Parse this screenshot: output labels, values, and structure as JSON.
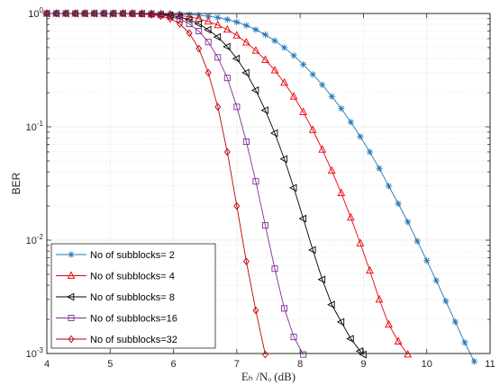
{
  "chart_data": {
    "type": "line",
    "title": "",
    "xlabel": "Eₕ /Nₒ (dB)",
    "ylabel": "BER",
    "xlim": [
      4,
      11
    ],
    "ylim": [
      0.001,
      1
    ],
    "yscale": "log",
    "grid": true,
    "legend_position": "bottom-left",
    "x_ticks": [
      "4",
      "5",
      "6",
      "7",
      "8",
      "9",
      "10",
      "11"
    ],
    "y_ticks": [
      {
        "value": 1,
        "base": "10",
        "exp": "0"
      },
      {
        "value": 0.1,
        "base": "10",
        "exp": "-1"
      },
      {
        "value": 0.01,
        "base": "10",
        "exp": "-2"
      },
      {
        "value": 0.001,
        "base": "10",
        "exp": "-3"
      }
    ],
    "series": [
      {
        "name": "No of subblocks= 2",
        "color": "#1f77b4",
        "marker": "asterisk",
        "x": [
          4.0,
          4.15,
          4.3,
          4.45,
          4.6,
          4.75,
          4.9,
          5.05,
          5.2,
          5.35,
          5.5,
          5.65,
          5.8,
          5.95,
          6.1,
          6.25,
          6.4,
          6.55,
          6.7,
          6.85,
          7.0,
          7.15,
          7.3,
          7.45,
          7.6,
          7.75,
          7.9,
          8.05,
          8.2,
          8.35,
          8.5,
          8.65,
          8.8,
          8.95,
          9.1,
          9.25,
          9.4,
          9.55,
          9.7,
          9.85,
          10.0,
          10.15,
          10.3,
          10.45,
          10.6,
          10.75
        ],
        "y": [
          1.0,
          1.0,
          1.0,
          1.0,
          1.0,
          1.0,
          1.0,
          1.0,
          1.0,
          1.0,
          1.0,
          1.0,
          0.998,
          0.996,
          0.99,
          0.98,
          0.965,
          0.945,
          0.92,
          0.885,
          0.84,
          0.785,
          0.72,
          0.65,
          0.575,
          0.5,
          0.425,
          0.355,
          0.29,
          0.235,
          0.185,
          0.145,
          0.11,
          0.082,
          0.06,
          0.043,
          0.03,
          0.021,
          0.0145,
          0.0098,
          0.0066,
          0.0044,
          0.0029,
          0.0019,
          0.00125,
          0.00085
        ]
      },
      {
        "name": "No of subblocks= 4",
        "color": "#e8000b",
        "marker": "triangle-up",
        "x": [
          4.0,
          4.15,
          4.3,
          4.45,
          4.6,
          4.75,
          4.9,
          5.05,
          5.2,
          5.35,
          5.5,
          5.65,
          5.8,
          5.95,
          6.1,
          6.25,
          6.4,
          6.55,
          6.7,
          6.85,
          7.0,
          7.15,
          7.3,
          7.45,
          7.6,
          7.75,
          7.9,
          8.05,
          8.2,
          8.35,
          8.5,
          8.65,
          8.8,
          8.95,
          9.1,
          9.25,
          9.4,
          9.55,
          9.7
        ],
        "y": [
          1.0,
          1.0,
          1.0,
          1.0,
          1.0,
          1.0,
          1.0,
          1.0,
          1.0,
          1.0,
          0.998,
          0.995,
          0.99,
          0.98,
          0.96,
          0.935,
          0.9,
          0.85,
          0.79,
          0.72,
          0.64,
          0.555,
          0.47,
          0.39,
          0.315,
          0.245,
          0.185,
          0.135,
          0.094,
          0.063,
          0.041,
          0.026,
          0.0158,
          0.0094,
          0.0054,
          0.003,
          0.0018,
          0.00128,
          0.00098
        ]
      },
      {
        "name": "No of subblocks= 8",
        "color": "#000000",
        "marker": "triangle-left",
        "x": [
          4.0,
          4.15,
          4.3,
          4.45,
          4.6,
          4.75,
          4.9,
          5.05,
          5.2,
          5.35,
          5.5,
          5.65,
          5.8,
          5.95,
          6.1,
          6.25,
          6.4,
          6.55,
          6.7,
          6.85,
          7.0,
          7.15,
          7.3,
          7.45,
          7.6,
          7.75,
          7.9,
          8.05,
          8.2,
          8.35,
          8.5,
          8.65,
          8.8,
          8.95,
          9.0
        ],
        "y": [
          1.0,
          1.0,
          1.0,
          1.0,
          1.0,
          1.0,
          1.0,
          1.0,
          1.0,
          0.998,
          0.995,
          0.99,
          0.98,
          0.96,
          0.93,
          0.88,
          0.81,
          0.72,
          0.62,
          0.51,
          0.4,
          0.3,
          0.21,
          0.14,
          0.088,
          0.052,
          0.029,
          0.0155,
          0.0082,
          0.0045,
          0.0027,
          0.0019,
          0.00135,
          0.00105,
          0.00098
        ]
      },
      {
        "name": "No of subblocks=16",
        "color": "#7e2f8e",
        "marker": "square",
        "x": [
          4.0,
          4.15,
          4.3,
          4.45,
          4.6,
          4.75,
          4.9,
          5.05,
          5.2,
          5.35,
          5.5,
          5.65,
          5.8,
          5.95,
          6.1,
          6.25,
          6.4,
          6.55,
          6.7,
          6.85,
          7.0,
          7.15,
          7.3,
          7.45,
          7.6,
          7.75,
          7.9,
          8.05
        ],
        "y": [
          1.0,
          1.0,
          1.0,
          1.0,
          1.0,
          1.0,
          1.0,
          1.0,
          1.0,
          0.997,
          0.993,
          0.985,
          0.97,
          0.94,
          0.89,
          0.81,
          0.7,
          0.56,
          0.41,
          0.27,
          0.15,
          0.074,
          0.033,
          0.0135,
          0.0056,
          0.0025,
          0.0014,
          0.00098
        ]
      },
      {
        "name": "No of subblocks=32",
        "color": "#c00000",
        "marker": "diamond",
        "x": [
          4.0,
          4.15,
          4.3,
          4.45,
          4.6,
          4.75,
          4.9,
          5.05,
          5.2,
          5.35,
          5.5,
          5.65,
          5.8,
          5.95,
          6.1,
          6.25,
          6.4,
          6.55,
          6.7,
          6.85,
          7.0,
          7.15,
          7.3,
          7.45
        ],
        "y": [
          1.0,
          1.0,
          1.0,
          1.0,
          1.0,
          1.0,
          1.0,
          1.0,
          0.998,
          0.995,
          0.99,
          0.975,
          0.95,
          0.9,
          0.81,
          0.67,
          0.49,
          0.3,
          0.15,
          0.06,
          0.02,
          0.0065,
          0.0024,
          0.00098
        ]
      }
    ]
  }
}
